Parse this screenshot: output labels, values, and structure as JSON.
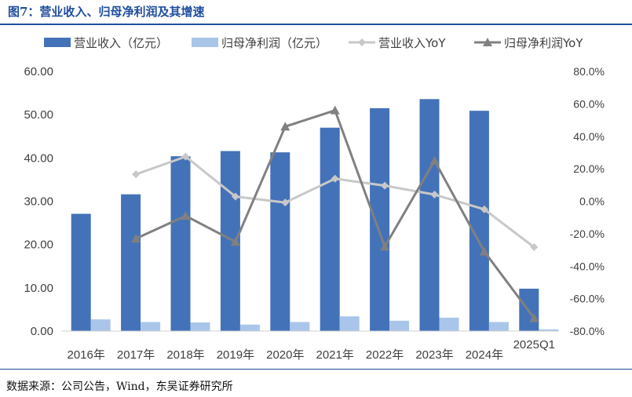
{
  "figure": {
    "title": "图7：营业收入、归母净利润及其增速",
    "source": "数据来源：公司公告，Wind，东吴证券研究所"
  },
  "colors": {
    "revenue_bar": "#4472b8",
    "profit_bar": "#a9c5e9",
    "revenue_yoy": "#c8c8c8",
    "profit_yoy": "#808080",
    "title": "#1f4e9e"
  },
  "chart_data": {
    "type": "bar",
    "title": "",
    "categories": [
      "2016年",
      "2017年",
      "2018年",
      "2019年",
      "2020年",
      "2021年",
      "2022年",
      "2023年",
      "2024年",
      "2025Q1"
    ],
    "series": [
      {
        "name": "营业收入（亿元）",
        "kind": "bar",
        "axis": "left",
        "values": [
          27.1,
          31.6,
          40.4,
          41.6,
          41.3,
          47.0,
          51.5,
          53.6,
          50.9,
          9.8
        ]
      },
      {
        "name": "归母净利润（亿元）",
        "kind": "bar",
        "axis": "left",
        "values": [
          2.7,
          2.1,
          2.0,
          1.5,
          2.1,
          3.4,
          2.4,
          3.1,
          2.1,
          0.4
        ]
      },
      {
        "name": "营业收入YoY",
        "kind": "line",
        "axis": "right",
        "marker": "diamond",
        "values": [
          null,
          16.6,
          27.5,
          2.9,
          -0.8,
          13.9,
          9.6,
          4.1,
          -5.0,
          -28.3
        ]
      },
      {
        "name": "归母净利润YoY",
        "kind": "line",
        "axis": "right",
        "marker": "triangle",
        "values": [
          null,
          -23.0,
          -9.0,
          -25.0,
          46.0,
          56.0,
          -28.0,
          25.0,
          -31.0,
          -72.0
        ]
      }
    ],
    "left_axis": {
      "ylim": [
        0,
        60
      ],
      "ticks": [
        "0.00",
        "10.00",
        "20.00",
        "30.00",
        "40.00",
        "50.00",
        "60.00"
      ]
    },
    "right_axis": {
      "ylim": [
        -80,
        80
      ],
      "ticks": [
        "-80.0%",
        "-60.0%",
        "-40.0%",
        "-20.0%",
        "0.0%",
        "20.0%",
        "40.0%",
        "60.0%",
        "80.0%"
      ]
    },
    "legend_position": "top",
    "grid": false
  }
}
